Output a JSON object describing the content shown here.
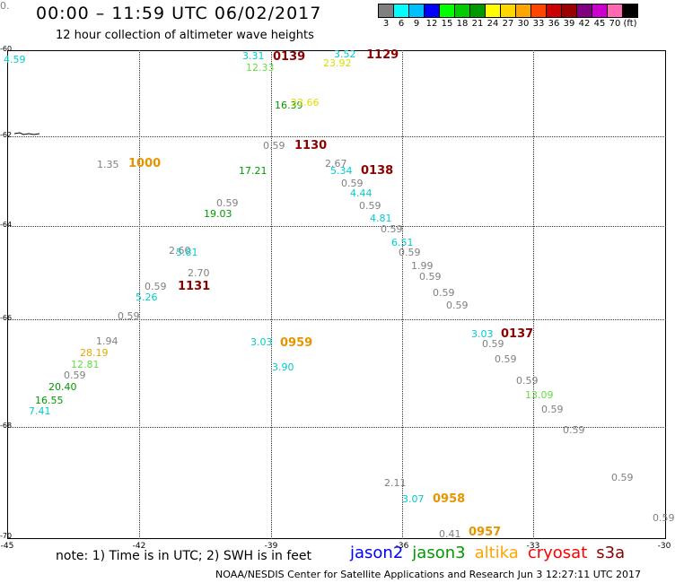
{
  "header": {
    "title": "00:00 – 11:59 UTC 06/02/2017",
    "subtitle": "12 hour collection of altimeter wave heights"
  },
  "colorbar": {
    "colors": [
      "#808080",
      "#00ffff",
      "#00bfff",
      "#0000ff",
      "#00ff00",
      "#00cc00",
      "#009900",
      "#ffff00",
      "#ffd700",
      "#ffa500",
      "#ff4500",
      "#cc0000",
      "#990000",
      "#800080",
      "#cc00cc",
      "#ff69b4",
      "#000000"
    ],
    "labels": [
      "3",
      "6",
      "9",
      "12",
      "15",
      "18",
      "21",
      "24",
      "27",
      "30",
      "33",
      "36",
      "39",
      "42",
      "45",
      "70",
      "(ft)"
    ]
  },
  "map": {
    "lon_labels": [
      "-45",
      "-42",
      "-39",
      "-36",
      "-33",
      "-30"
    ],
    "lat_labels": [
      "-60",
      "-62",
      "-64",
      "-66",
      "-68",
      "-70"
    ],
    "observations": [
      {
        "text": "4.59",
        "color": "#00cccc"
      },
      {
        "text": "3.31",
        "color": "#00cccc"
      },
      {
        "text": "12.33",
        "color": "#66dd44"
      },
      {
        "text": "3.52",
        "color": "#00cccc"
      },
      {
        "text": "23.92",
        "color": "#dddd00"
      },
      {
        "text": "16.39",
        "color": "#009900"
      },
      {
        "text": "23.66",
        "color": "#dddd00"
      },
      {
        "text": "0.59",
        "color": "#808080"
      },
      {
        "text": "1.35",
        "color": "#808080"
      },
      {
        "text": "17.21",
        "color": "#009900"
      },
      {
        "text": "2.67",
        "color": "#808080"
      },
      {
        "text": "5.34",
        "color": "#00cccc"
      },
      {
        "text": "0.59",
        "color": "#808080"
      },
      {
        "text": "4.44",
        "color": "#00cccc"
      },
      {
        "text": "0.59",
        "color": "#808080"
      },
      {
        "text": "0.59",
        "color": "#808080"
      },
      {
        "text": "19.03",
        "color": "#009900"
      },
      {
        "text": "4.81",
        "color": "#00cccc"
      },
      {
        "text": "0.59",
        "color": "#808080"
      },
      {
        "text": "2.60",
        "color": "#808080"
      },
      {
        "text": "5.81",
        "color": "#00cccc"
      },
      {
        "text": "6.51",
        "color": "#00cccc"
      },
      {
        "text": "0.59",
        "color": "#808080"
      },
      {
        "text": "1.99",
        "color": "#808080"
      },
      {
        "text": "0.59",
        "color": "#808080"
      },
      {
        "text": "2.70",
        "color": "#808080"
      },
      {
        "text": "0.59",
        "color": "#808080"
      },
      {
        "text": "0.59",
        "color": "#808080"
      },
      {
        "text": "5.26",
        "color": "#00cccc"
      },
      {
        "text": "0.59",
        "color": "#808080"
      },
      {
        "text": "0.59",
        "color": "#808080"
      },
      {
        "text": "0.59",
        "color": "#808080"
      },
      {
        "text": "1.94",
        "color": "#808080"
      },
      {
        "text": "28.19",
        "color": "#e6a800"
      },
      {
        "text": "12.81",
        "color": "#66dd44"
      },
      {
        "text": "0.59",
        "color": "#808080"
      },
      {
        "text": "20.40",
        "color": "#009900"
      },
      {
        "text": "16.55",
        "color": "#009900"
      },
      {
        "text": "7.41",
        "color": "#00cccc"
      },
      {
        "text": "3.03",
        "color": "#00cccc"
      },
      {
        "text": "3.90",
        "color": "#00cccc"
      },
      {
        "text": "3.03",
        "color": "#00cccc"
      },
      {
        "text": "0.59",
        "color": "#808080"
      },
      {
        "text": "0.59",
        "color": "#808080"
      },
      {
        "text": "0.59",
        "color": "#808080"
      },
      {
        "text": "13.09",
        "color": "#66dd44"
      },
      {
        "text": "0.59",
        "color": "#808080"
      },
      {
        "text": "0.59",
        "color": "#808080"
      },
      {
        "text": "0.59",
        "color": "#808080"
      },
      {
        "text": "2.11",
        "color": "#808080"
      },
      {
        "text": "3.07",
        "color": "#00cccc"
      },
      {
        "text": "0.41",
        "color": "#808080"
      },
      {
        "text": "0.",
        "color": "#808080"
      }
    ],
    "times": [
      {
        "text": "0139",
        "color": "#8b0000"
      },
      {
        "text": "1129",
        "color": "#8b0000"
      },
      {
        "text": "1130",
        "color": "#8b0000"
      },
      {
        "text": "1000",
        "color": "#e69500"
      },
      {
        "text": "0138",
        "color": "#8b0000"
      },
      {
        "text": "1131",
        "color": "#8b0000"
      },
      {
        "text": "0959",
        "color": "#e69500"
      },
      {
        "text": "0137",
        "color": "#8b0000"
      },
      {
        "text": "0958",
        "color": "#e69500"
      },
      {
        "text": "0957",
        "color": "#e69500"
      }
    ]
  },
  "note": "note: 1) Time is in UTC; 2) SWH is in feet",
  "legend": [
    {
      "text": "jason2",
      "color": "#0000ff"
    },
    {
      "text": "jason3",
      "color": "#009900"
    },
    {
      "text": "altika",
      "color": "#ffa500"
    },
    {
      "text": "cryosat",
      "color": "#ff0000"
    },
    {
      "text": "s3a",
      "color": "#8b0000"
    }
  ],
  "footer": "NOAA/NESDIS Center for Satellite Applications and Research    Jun  3 12:27:11 UTC 2017"
}
